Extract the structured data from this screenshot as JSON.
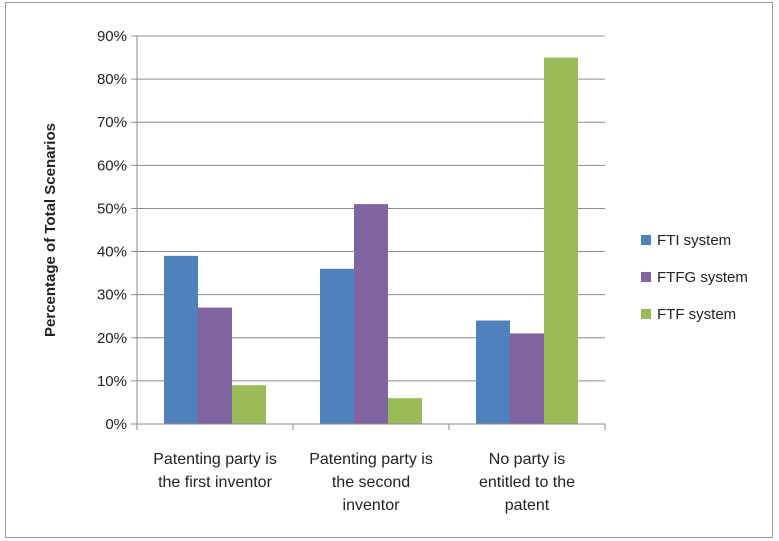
{
  "chart_data": {
    "type": "bar",
    "title": "",
    "xlabel": "",
    "ylabel": "Percentage of Total Scenarios",
    "ylim": [
      0,
      90
    ],
    "y_tick_step": 10,
    "y_tick_format": "percent",
    "grid": true,
    "legend_position": "right",
    "categories": [
      [
        "Patenting party is",
        "the first inventor"
      ],
      [
        "Patenting party is",
        "the second",
        "inventor"
      ],
      [
        "No party is",
        "entitled to the",
        "patent"
      ]
    ],
    "series": [
      {
        "name": "FTI system",
        "color": "#4f81bd",
        "values": [
          39,
          36,
          24
        ]
      },
      {
        "name": "FTFG system",
        "color": "#8064a2",
        "values": [
          27,
          51,
          21
        ]
      },
      {
        "name": "FTF system",
        "color": "#9bbb59",
        "values": [
          9,
          6,
          85
        ]
      }
    ]
  }
}
